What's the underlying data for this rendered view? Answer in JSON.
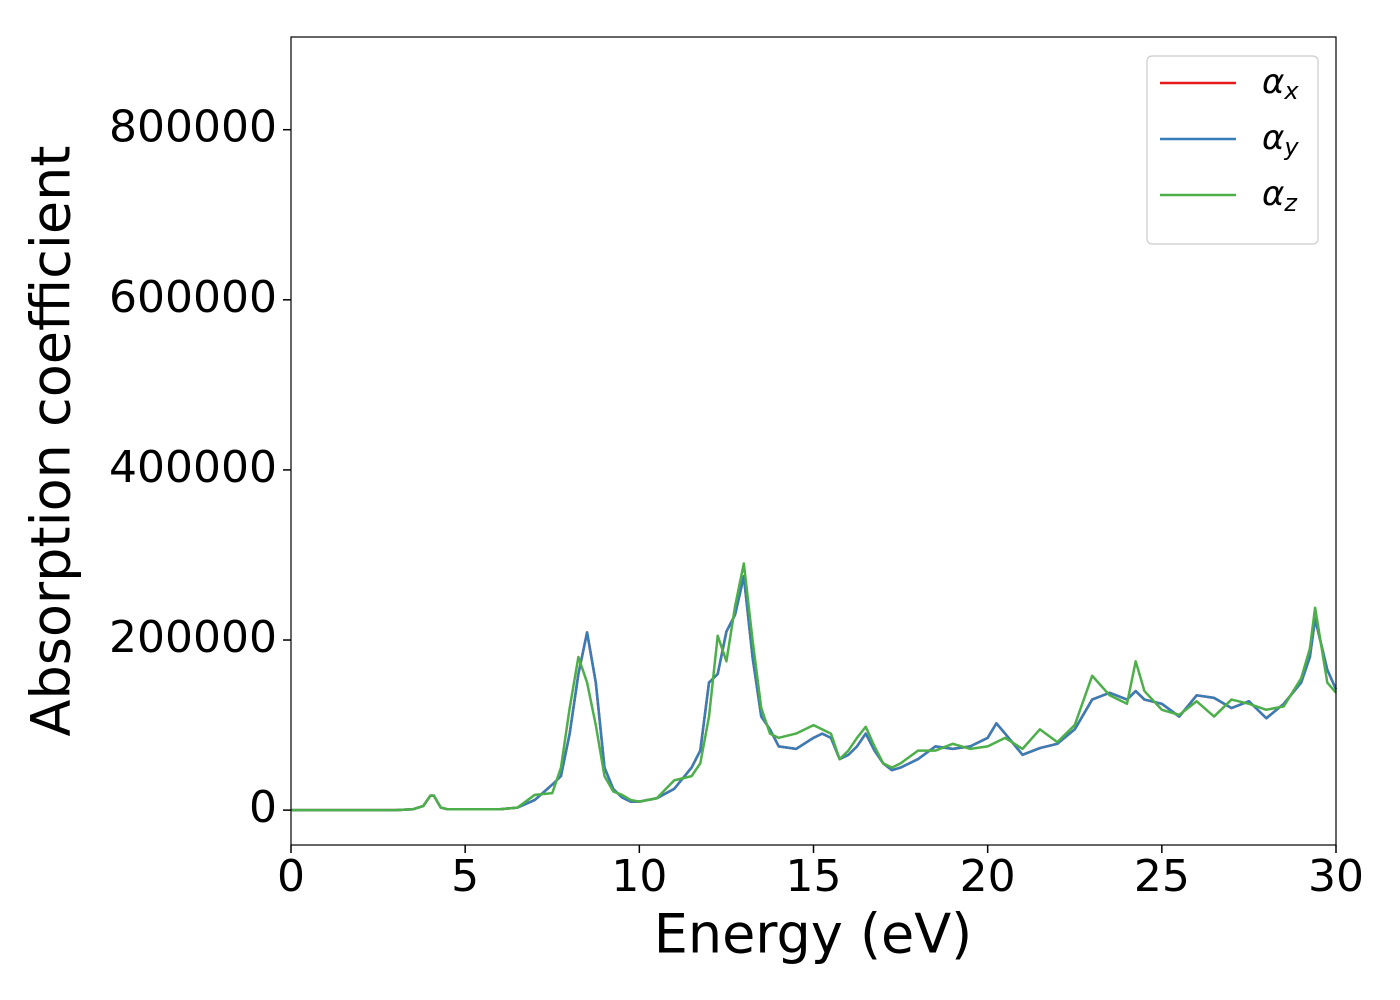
{
  "chart_data": {
    "type": "line",
    "xlabel": "Energy (eV)",
    "ylabel": "Absorption coefficient",
    "x": [
      0,
      1,
      2,
      3,
      3.5,
      3.8,
      4.0,
      4.1,
      4.3,
      4.5,
      5,
      6,
      6.5,
      7,
      7.5,
      7.75,
      8,
      8.25,
      8.5,
      8.75,
      9,
      9.25,
      9.5,
      9.75,
      10,
      10.5,
      11,
      11.5,
      11.75,
      12,
      12.25,
      12.5,
      12.75,
      13,
      13.25,
      13.5,
      13.75,
      14,
      14.5,
      15,
      15.25,
      15.5,
      15.75,
      16,
      16.25,
      16.5,
      16.75,
      17,
      17.25,
      17.5,
      18,
      18.5,
      19,
      19.5,
      20,
      20.25,
      20.5,
      21,
      21.5,
      22,
      22.5,
      23,
      23.5,
      24,
      24.25,
      24.5,
      25,
      25.5,
      26,
      26.5,
      27,
      27.5,
      28,
      28.5,
      29,
      29.25,
      29.4,
      29.75,
      30
    ],
    "series": [
      {
        "name": "αx",
        "color": "#e41a1c",
        "values": [
          0,
          0,
          0,
          0,
          1000,
          5000,
          17000,
          17000,
          3000,
          1000,
          1000,
          1000,
          3000,
          12000,
          30000,
          40000,
          90000,
          160000,
          209000,
          150000,
          50000,
          25000,
          15000,
          10000,
          10000,
          14000,
          25000,
          50000,
          70000,
          150000,
          160000,
          210000,
          230000,
          275000,
          180000,
          110000,
          95000,
          75000,
          72000,
          85000,
          90000,
          85000,
          60000,
          65000,
          75000,
          90000,
          70000,
          55000,
          47000,
          50000,
          60000,
          75000,
          72000,
          75000,
          85000,
          102000,
          90000,
          65000,
          73000,
          78000,
          95000,
          130000,
          138000,
          130000,
          140000,
          130000,
          125000,
          110000,
          135000,
          132000,
          120000,
          128000,
          108000,
          125000,
          150000,
          180000,
          225000,
          165000,
          142000
        ]
      },
      {
        "name": "αy",
        "color": "#377eb8",
        "values": [
          0,
          0,
          0,
          0,
          1000,
          5000,
          17000,
          17000,
          3000,
          1000,
          1000,
          1000,
          3000,
          12000,
          30000,
          40000,
          90000,
          160000,
          209000,
          150000,
          50000,
          25000,
          15000,
          10000,
          10000,
          14000,
          25000,
          50000,
          70000,
          150000,
          160000,
          210000,
          230000,
          275000,
          180000,
          110000,
          95000,
          75000,
          72000,
          85000,
          90000,
          85000,
          60000,
          65000,
          75000,
          90000,
          70000,
          55000,
          47000,
          50000,
          60000,
          75000,
          72000,
          75000,
          85000,
          102000,
          90000,
          65000,
          73000,
          78000,
          95000,
          130000,
          138000,
          130000,
          140000,
          130000,
          125000,
          110000,
          135000,
          132000,
          120000,
          128000,
          108000,
          125000,
          150000,
          180000,
          225000,
          165000,
          142000
        ]
      },
      {
        "name": "αz",
        "color": "#4daf4a",
        "values": [
          0,
          0,
          0,
          0,
          1000,
          5000,
          17000,
          17000,
          3000,
          1000,
          1000,
          1000,
          3000,
          18000,
          20000,
          50000,
          120000,
          180000,
          150000,
          100000,
          40000,
          22000,
          18000,
          12000,
          10000,
          14000,
          35000,
          40000,
          55000,
          110000,
          205000,
          175000,
          240000,
          290000,
          200000,
          120000,
          90000,
          85000,
          90000,
          100000,
          95000,
          90000,
          60000,
          70000,
          85000,
          98000,
          75000,
          55000,
          50000,
          55000,
          70000,
          70000,
          78000,
          72000,
          75000,
          80000,
          85000,
          72000,
          95000,
          80000,
          100000,
          158000,
          135000,
          125000,
          175000,
          140000,
          118000,
          112000,
          128000,
          110000,
          130000,
          125000,
          118000,
          122000,
          155000,
          190000,
          238000,
          150000,
          138000
        ]
      }
    ],
    "xlim": [
      0,
      30
    ],
    "xticks": [
      0,
      5,
      10,
      15,
      20,
      25,
      30
    ],
    "ylim": [
      -41000,
      909000
    ],
    "yticks": [
      0,
      200000,
      400000,
      600000,
      800000
    ],
    "legend": "upper right",
    "grid": false
  }
}
